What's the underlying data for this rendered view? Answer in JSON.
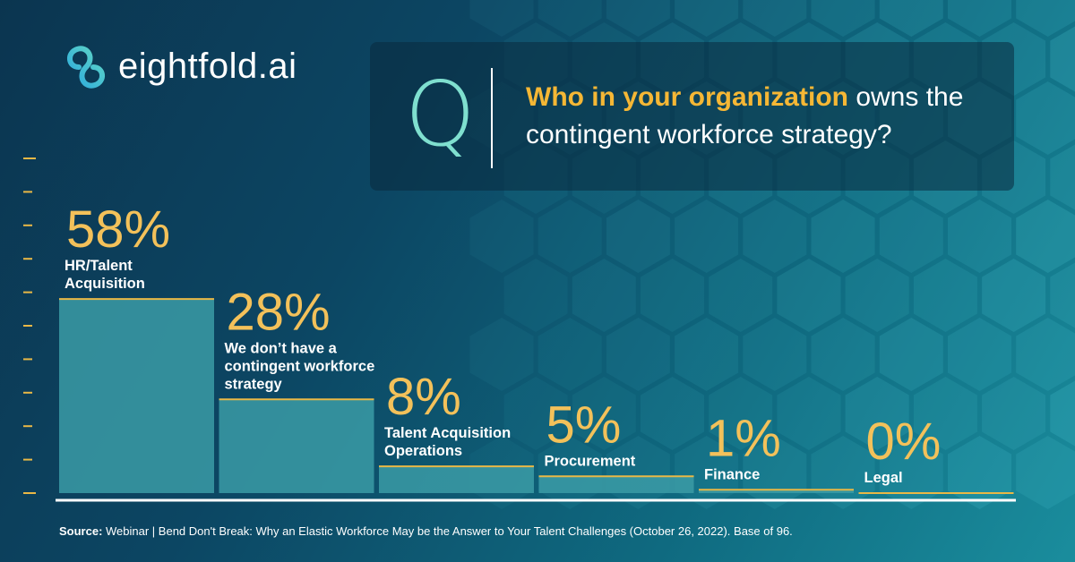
{
  "brand": {
    "name": "eightfold.ai"
  },
  "question": {
    "letter": "Q",
    "highlight": "Who in your organization",
    "rest": " owns the contingent workforce strategy?"
  },
  "chart_data": {
    "type": "bar",
    "categories": [
      "HR/Talent Acquisition",
      "We don't have a contingent workforce strategy",
      "Talent Acquisition Operations",
      "Procurement",
      "Finance",
      "Legal"
    ],
    "label_lines": [
      [
        "HR/Talent",
        "Acquisition"
      ],
      [
        "We don’t have a",
        "contingent workforce",
        "strategy"
      ],
      [
        "Talent Acquisition",
        "Operations"
      ],
      [
        "Procurement"
      ],
      [
        "Finance"
      ],
      [
        "Legal"
      ]
    ],
    "values": [
      58,
      28,
      8,
      5,
      1,
      0
    ],
    "value_labels": [
      "58%",
      "28%",
      "8%",
      "5%",
      "1%",
      "0%"
    ],
    "unit": "%",
    "ylim": [
      0,
      100
    ],
    "grid": false,
    "colors": {
      "bar": "#3b9ba6",
      "bar_top": "#e9b846",
      "value_text": "#f3c15a",
      "axis": "#ffffff",
      "ticks": "#e9b846"
    }
  },
  "source": {
    "label": "Source:",
    "text": " Webinar | Bend Don't Break: Why an Elastic Workforce May be the Answer to Your Talent Challenges (October 26, 2022). Base of 96."
  }
}
